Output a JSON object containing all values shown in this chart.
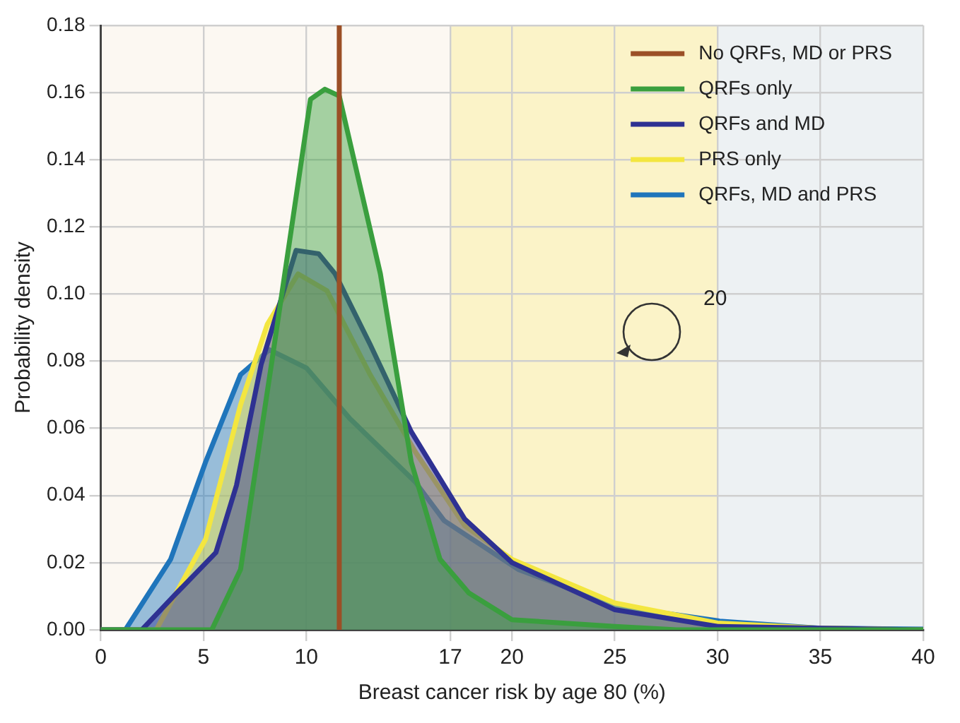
{
  "chart_data": {
    "type": "area",
    "xlabel": "Breast cancer risk by age 80 (%)",
    "ylabel": "Probability density",
    "xlim": [
      0,
      40
    ],
    "xticks": [
      0,
      5,
      10,
      17,
      20,
      25,
      30,
      35,
      40
    ],
    "ylim": [
      0,
      0.18
    ],
    "yticks": [
      {
        "value": 0,
        "label": "0.00"
      },
      {
        "value": 0.02,
        "label": "0.02"
      },
      {
        "value": 0.04,
        "label": "0.04"
      },
      {
        "value": 0.06,
        "label": "0.06"
      },
      {
        "value": 0.08,
        "label": "0.08"
      },
      {
        "value": 0.1,
        "label": "0.10"
      },
      {
        "value": 0.12,
        "label": "0.12"
      },
      {
        "value": 0.14,
        "label": "0.14"
      },
      {
        "value": 0.16,
        "label": "0.16"
      },
      {
        "value": 0.18,
        "label": "0.18"
      }
    ],
    "grid": true,
    "legend": "top right",
    "bands": [
      {
        "axis": "x",
        "from": 0,
        "to": 17,
        "color": "#fcf8f2"
      },
      {
        "axis": "x",
        "from": 17,
        "to": 30,
        "color": "#fbf3c8"
      },
      {
        "axis": "x",
        "from": 30,
        "to": 40,
        "color": "#edf1f3"
      }
    ],
    "annotations": [
      "20"
    ],
    "series": [
      {
        "name": "No QRFs, MD or PRS",
        "type": "line",
        "color": "#9b4f26",
        "x": [
          11.6,
          11.6
        ],
        "values": [
          0,
          0.18
        ]
      },
      {
        "name": "QRFs only",
        "color": "#3a9f3e",
        "x": [
          0,
          4,
          5.4,
          6.8,
          8.3,
          10.2,
          10.9,
          11.6,
          13.6,
          15.1,
          16.5,
          17.9,
          20,
          25,
          28,
          40
        ],
        "values": [
          0,
          0,
          0,
          0.018,
          0.079,
          0.158,
          0.161,
          0.159,
          0.106,
          0.05,
          0.021,
          0.011,
          0.003,
          0.001,
          0,
          0
        ]
      },
      {
        "name": "QRFs and MD",
        "color": "#2e3192",
        "x": [
          0,
          2,
          3.7,
          5.6,
          6.6,
          7.8,
          9.5,
          10.6,
          11.4,
          13.1,
          15.1,
          17.7,
          20,
          25,
          30,
          40
        ],
        "values": [
          0,
          0,
          0.011,
          0.023,
          0.043,
          0.079,
          0.113,
          0.112,
          0.106,
          0.085,
          0.059,
          0.033,
          0.02,
          0.006,
          0.001,
          0
        ]
      },
      {
        "name": "PRS only",
        "color": "#f3e640",
        "x": [
          0,
          2.7,
          5.1,
          6.8,
          8.1,
          9.6,
          11,
          13.1,
          15.3,
          17.7,
          20,
          25,
          30,
          35,
          40
        ],
        "values": [
          0,
          0,
          0.027,
          0.067,
          0.091,
          0.106,
          0.101,
          0.076,
          0.053,
          0.031,
          0.021,
          0.008,
          0.002,
          0.0005,
          0
        ]
      },
      {
        "name": "QRFs, MD and PRS",
        "color": "#1f75bb",
        "x": [
          0,
          1.2,
          3.4,
          5.1,
          6.8,
          8.2,
          10,
          12.1,
          15.3,
          16.7,
          20.3,
          25.1,
          30.1,
          35,
          40
        ],
        "values": [
          0,
          0,
          0.021,
          0.05,
          0.076,
          0.0834,
          0.078,
          0.063,
          0.044,
          0.0325,
          0.018,
          0.007,
          0.0026,
          0.0005,
          0.0002
        ]
      }
    ]
  }
}
